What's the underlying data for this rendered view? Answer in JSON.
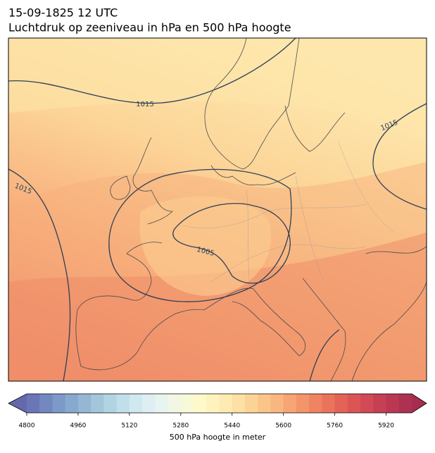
{
  "header": {
    "title": "15-09-1825 12 UTC",
    "subtitle": "Luchtdruk op zeeniveau in hPa en 500 hPa hoogte"
  },
  "map": {
    "contour_labels": [
      "1015",
      "1015",
      "1015",
      "1005"
    ]
  },
  "colorbar": {
    "label": "500 hPa hoogte in meter",
    "range": [
      4800,
      6000
    ],
    "ticks": [
      4800,
      4960,
      5120,
      5280,
      5440,
      5600,
      5760,
      5920
    ],
    "extend_colors": [
      "#636aab",
      "#a62d50"
    ],
    "colors": [
      "#6b76b8",
      "#7388c0",
      "#7c99c8",
      "#88a9ce",
      "#94b8d4",
      "#a3c6da",
      "#b2d3e2",
      "#c1dfe9",
      "#d0e8ef",
      "#ddeff2",
      "#e8f4ef",
      "#f1f7e4",
      "#f8f9d8",
      "#fdf9cb",
      "#fef3be",
      "#feebb1",
      "#fde0a3",
      "#fcd396",
      "#fbc589",
      "#f9b67e",
      "#f7a574",
      "#f4946a",
      "#f08362",
      "#eb735b",
      "#e46357",
      "#db5555",
      "#d14a55",
      "#c64054",
      "#ba3852",
      "#ad3150"
    ]
  }
}
